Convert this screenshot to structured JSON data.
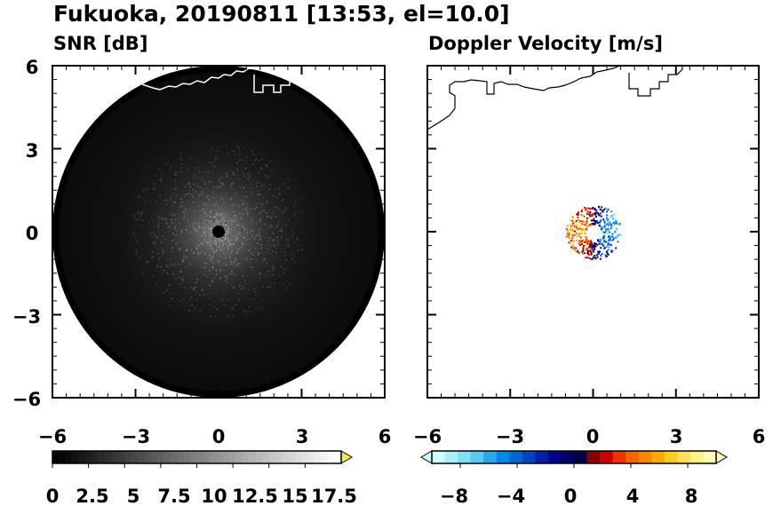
{
  "figure": {
    "title": "Fukuoka, 20190811 [13:53, el=10.0]"
  },
  "chart_data": [
    {
      "type": "heatmap",
      "panel": "left",
      "title": "SNR [dB]",
      "xlim": [
        -6,
        6
      ],
      "ylim": [
        -6,
        6
      ],
      "x_ticks": [
        -6,
        -3,
        0,
        3,
        6
      ],
      "y_ticks": [
        6,
        3,
        0,
        -3,
        -6
      ],
      "x_tick_labels": [
        "−6",
        "−3",
        "0",
        "3",
        "6"
      ],
      "y_tick_labels": [
        "6",
        "3",
        "0",
        "−3",
        "−6"
      ],
      "range_radius": 6,
      "background_color": "#000000",
      "coastline_color": "#ffffff",
      "colorbar": {
        "range": [
          0,
          20
        ],
        "extend": "max",
        "tick_values": [
          0,
          2.5,
          5,
          7.5,
          10,
          12.5,
          15,
          17.5
        ],
        "tick_labels": [
          "0",
          "2.5",
          "5",
          "7.5",
          "10",
          "12.5",
          "15",
          "17.5"
        ],
        "color_start": "#000000",
        "color_end": "#ffffff",
        "over_color": "#f2e94e"
      }
    },
    {
      "type": "heatmap",
      "panel": "right",
      "title": "Doppler Velocity [m/s]",
      "xlim": [
        -6,
        6
      ],
      "ylim": [
        -6,
        6
      ],
      "x_ticks": [
        -6,
        -3,
        0,
        3,
        6
      ],
      "y_ticks": [
        6,
        3,
        0,
        -3,
        -6
      ],
      "x_tick_labels": [
        "−6",
        "−3",
        "0",
        "3",
        "6"
      ],
      "y_tick_labels": [
        "6",
        "3",
        "0",
        "−3",
        "−6"
      ],
      "background_color": "#ffffff",
      "coastline_color": "#000000",
      "echo_region_radius": [
        0.3,
        1.0
      ],
      "colorbar": {
        "range": [
          -10,
          10
        ],
        "extend": "both",
        "tick_values": [
          -8,
          -4,
          0,
          4,
          8
        ],
        "tick_labels": [
          "−8",
          "−4",
          "0",
          "4",
          "8"
        ],
        "colors": [
          "#ccffff",
          "#a8f0f8",
          "#80e0f4",
          "#55ccf0",
          "#2aaaee",
          "#0088e8",
          "#0066d0",
          "#0044c0",
          "#0022aa",
          "#000088",
          "#000066",
          "#000044",
          "#880000",
          "#cc0000",
          "#ee3300",
          "#f46600",
          "#f88800",
          "#fbaa00",
          "#fccc22",
          "#fde055",
          "#feef88",
          "#fff8bb"
        ]
      }
    }
  ]
}
